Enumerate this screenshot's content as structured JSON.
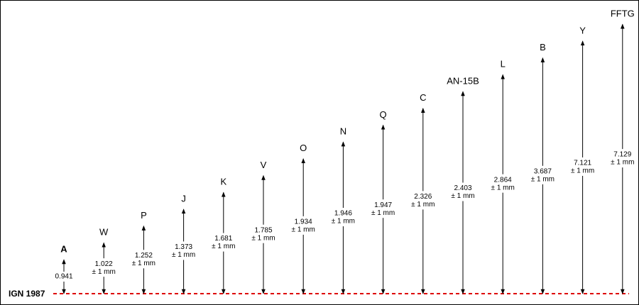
{
  "datum": "IGN 1987",
  "points": [
    {
      "label": "A",
      "value": 0.941
    },
    {
      "label": "W",
      "value": 1.022,
      "tolerance": "± 1 mm"
    },
    {
      "label": "P",
      "value": 1.252,
      "tolerance": "± 1 mm"
    },
    {
      "label": "J",
      "value": 1.373,
      "tolerance": "± 1 mm"
    },
    {
      "label": "K",
      "value": 1.681,
      "tolerance": "± 1 mm"
    },
    {
      "label": "V",
      "value": 1.785,
      "tolerance": "± 1 mm"
    },
    {
      "label": "O",
      "value": 1.934,
      "tolerance": "± 1 mm"
    },
    {
      "label": "N",
      "value": 1.946,
      "tolerance": "± 1 mm"
    },
    {
      "label": "Q",
      "value": 1.947,
      "tolerance": "± 1 mm"
    },
    {
      "label": "C",
      "value": 2.326,
      "tolerance": "± 1 mm"
    },
    {
      "label": "AN-15B",
      "value": 2.403,
      "tolerance": "± 1 mm"
    },
    {
      "label": "L",
      "value": 2.864,
      "tolerance": "± 1 mm"
    },
    {
      "label": "B",
      "value": 3.687,
      "tolerance": "± 1 mm"
    },
    {
      "label": "Y",
      "value": 7.121,
      "tolerance": "± 1 mm"
    },
    {
      "label": "FFTG",
      "value": 7.129,
      "tolerance": "± 1 mm"
    }
  ]
}
